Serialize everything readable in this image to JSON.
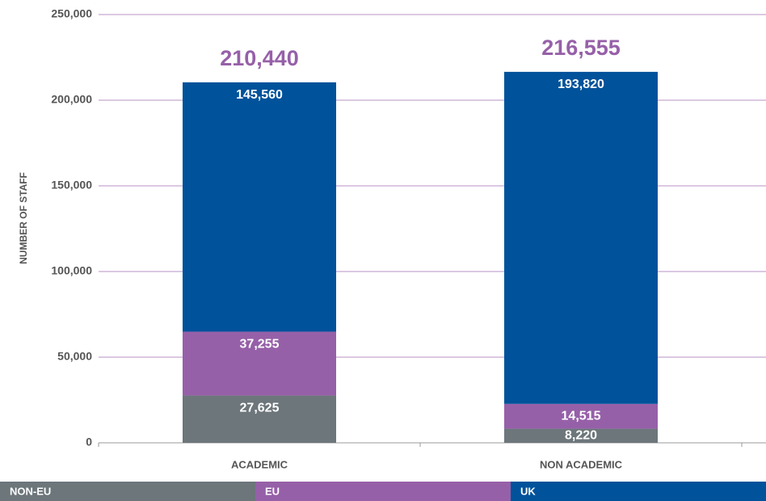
{
  "chart_data": {
    "type": "stacked_bar",
    "y_label": "NUMBER OF STAFF",
    "categories": [
      "ACADEMIC",
      "NON ACADEMIC"
    ],
    "series": [
      {
        "name": "NON-EU",
        "color": "#6c767b",
        "values": [
          27625,
          8220
        ],
        "value_labels": [
          "27,625",
          "8,220"
        ]
      },
      {
        "name": "EU",
        "color": "#9660a8",
        "values": [
          37255,
          14515
        ],
        "value_labels": [
          "37,255",
          "14,515"
        ]
      },
      {
        "name": "UK",
        "color": "#00529b",
        "values": [
          145560,
          193820
        ],
        "value_labels": [
          "145,560",
          "193,820"
        ]
      }
    ],
    "totals": {
      "color": "#9660a8",
      "values": [
        210440,
        216555
      ],
      "value_labels": [
        "210,440",
        "216,555"
      ]
    },
    "ylim": [
      0,
      250000
    ],
    "yticks": [
      0,
      {
        "value": 50000,
        "label": "50,000"
      },
      {
        "value": 100000,
        "label": "100,000"
      },
      {
        "value": 150000,
        "label": "150,000"
      },
      {
        "value": 200000,
        "label": "200,000"
      },
      {
        "value": 250000,
        "label": "250,000"
      }
    ],
    "grid": true,
    "grid_color": "#b892c6",
    "legend": "bottom"
  }
}
